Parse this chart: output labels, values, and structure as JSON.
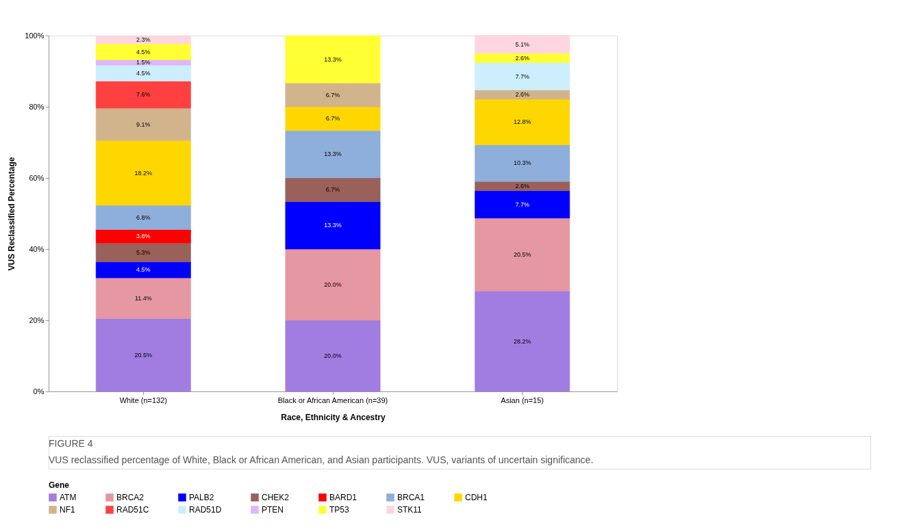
{
  "chart_data": {
    "type": "bar",
    "stacked": true,
    "xlabel": "Race, Ethnicity & Ancestry",
    "ylabel": "VUS Reclassified Percentage",
    "legend_title": "Gene",
    "legend": "bottom",
    "categories": [
      "White (n=132)",
      "Black or African American (n=39)",
      "Asian (n=15)"
    ],
    "ylim": [
      0,
      100
    ],
    "yticks": [
      {
        "value": 0,
        "label": "0%"
      },
      {
        "value": 20,
        "label": "20%"
      },
      {
        "value": 40,
        "label": "40%"
      },
      {
        "value": 60,
        "label": "60%"
      },
      {
        "value": 80,
        "label": "80%"
      },
      {
        "value": 100,
        "label": "100%"
      }
    ],
    "grid": false,
    "series": [
      {
        "name": "ATM",
        "color": "#a17de1",
        "values": [
          20.5,
          20.0,
          28.2
        ],
        "value_labels": [
          "20.5%",
          "20.0%",
          "28.2%"
        ]
      },
      {
        "name": "BRCA2",
        "color": "#e597a2",
        "values": [
          11.4,
          20.0,
          20.5
        ],
        "value_labels": [
          "11.4%",
          "20.0%",
          "20.5%"
        ]
      },
      {
        "name": "PALB2",
        "color": "#0000ff",
        "values": [
          4.5,
          13.3,
          7.7
        ],
        "value_labels": [
          "4.5%",
          "13.3%",
          "7.7%"
        ]
      },
      {
        "name": "CHEK2",
        "color": "#9a605a",
        "values": [
          5.3,
          6.7,
          2.6
        ],
        "value_labels": [
          "5.3%",
          "6.7%",
          "2.6%"
        ]
      },
      {
        "name": "BARD1",
        "color": "#ff0000",
        "values": [
          3.8,
          null,
          null
        ],
        "value_labels": [
          "3.8%",
          null,
          null
        ]
      },
      {
        "name": "BRCA1",
        "color": "#8eaedb",
        "values": [
          6.8,
          13.3,
          10.3
        ],
        "value_labels": [
          "6.8%",
          "13.3%",
          "10.3%"
        ]
      },
      {
        "name": "CDH1",
        "color": "#ffd700",
        "values": [
          18.2,
          6.7,
          12.8
        ],
        "value_labels": [
          "18.2%",
          "6.7%",
          "12.8%"
        ]
      },
      {
        "name": "NF1",
        "color": "#d2b48c",
        "values": [
          9.1,
          6.7,
          2.6
        ],
        "value_labels": [
          "9.1%",
          "6.7%",
          "2.6%"
        ]
      },
      {
        "name": "RAD51C",
        "color": "#ff4040",
        "values": [
          7.6,
          null,
          null
        ],
        "value_labels": [
          "7.6%",
          null,
          null
        ]
      },
      {
        "name": "RAD51D",
        "color": "#cdeefc",
        "values": [
          4.5,
          null,
          7.7
        ],
        "value_labels": [
          "4.5%",
          null,
          "7.7%"
        ]
      },
      {
        "name": "PTEN",
        "color": "#ddb7fa",
        "values": [
          1.5,
          null,
          null
        ],
        "value_labels": [
          "1.5%",
          null,
          null
        ]
      },
      {
        "name": "TP53",
        "color": "#ffff33",
        "values": [
          4.5,
          13.3,
          2.6
        ],
        "value_labels": [
          "4.5%",
          "13.3%",
          "2.6%"
        ]
      },
      {
        "name": "STK11",
        "color": "#fdd6e2",
        "values": [
          2.3,
          null,
          5.1
        ],
        "value_labels": [
          "2.3%",
          null,
          "5.1%"
        ]
      }
    ],
    "annotations": [
      "FIGURE 4",
      "VUS reclassified percentage of White, Black or African American, and Asian participants. VUS, variants of uncertain significance."
    ]
  }
}
